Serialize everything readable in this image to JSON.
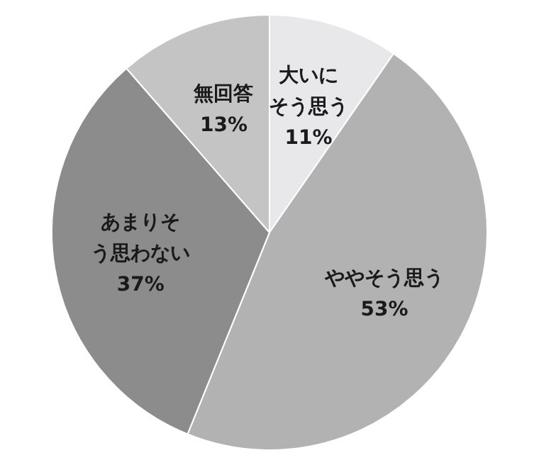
{
  "chart_data": {
    "type": "pie",
    "categories": [
      "大いにそう思う",
      "ややそう思う",
      "あまりそう思わない",
      "無回答"
    ],
    "values": [
      11,
      53,
      37,
      13
    ],
    "value_labels": [
      "11%",
      "53%",
      "37%",
      "13%"
    ],
    "colors": [
      "#e8e8ea",
      "#b2b2b2",
      "#8c8c8c",
      "#c4c4c4"
    ],
    "legend": false
  }
}
